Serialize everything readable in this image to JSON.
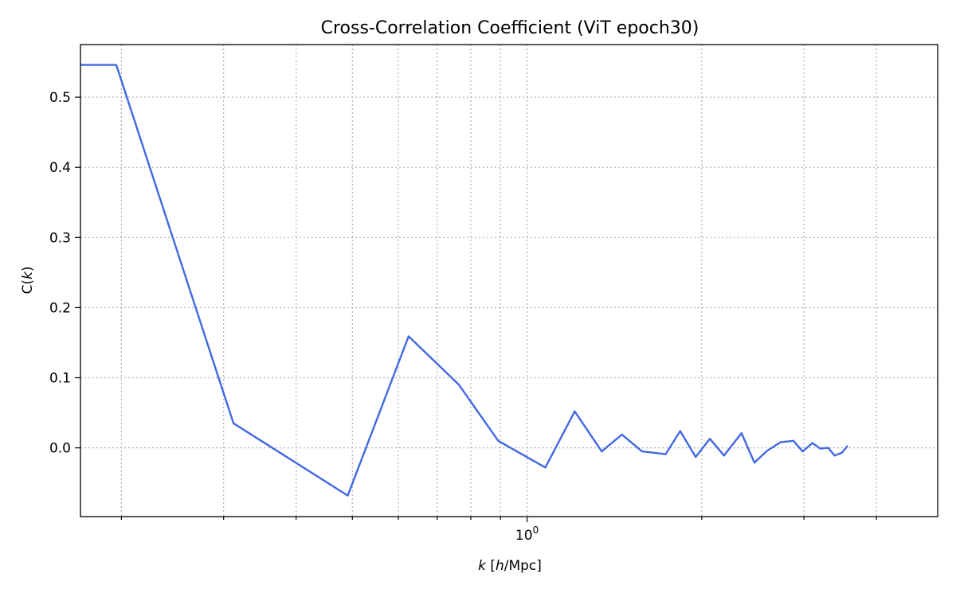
{
  "chart_data": {
    "type": "line",
    "title": "Cross-Correlation Coefficient (ViT epoch30)",
    "xlabel_italic": "k",
    "xlabel_rest": " [",
    "xlabel_h": "h",
    "xlabel_unit": "/Mpc]",
    "ylabel_C": "C(",
    "ylabel_k": "k",
    "ylabel_close": ")",
    "x_scale": "log",
    "xlim": [
      0.17,
      5.1
    ],
    "ylim": [
      -0.098,
      0.575
    ],
    "grid": true,
    "x_major_ticks": [
      {
        "value": 1.0,
        "label": "10",
        "exp": "0"
      }
    ],
    "x_minor_ticks": [
      0.2,
      0.3,
      0.4,
      0.5,
      0.6,
      0.7,
      0.8,
      0.9,
      2.0,
      3.0,
      4.0
    ],
    "y_ticks": [
      {
        "value": 0.0,
        "label": "0.0"
      },
      {
        "value": 0.1,
        "label": "0.1"
      },
      {
        "value": 0.2,
        "label": "0.2"
      },
      {
        "value": 0.3,
        "label": "0.3"
      },
      {
        "value": 0.4,
        "label": "0.4"
      },
      {
        "value": 0.5,
        "label": "0.5"
      }
    ],
    "series": [
      {
        "color": "#4169e1",
        "x": [
          0.17,
          0.196,
          0.312,
          0.491,
          0.625,
          0.763,
          0.892,
          1.075,
          1.208,
          1.345,
          1.457,
          1.578,
          1.733,
          1.836,
          1.952,
          2.066,
          2.185,
          2.342,
          2.464,
          2.593,
          2.733,
          2.878,
          2.985,
          3.103,
          3.199,
          3.303,
          3.388,
          3.486,
          3.569
        ],
        "y": [
          0.546,
          0.546,
          0.035,
          -0.068,
          0.159,
          0.09,
          0.01,
          -0.028,
          0.052,
          -0.005,
          0.019,
          -0.005,
          -0.009,
          0.024,
          -0.013,
          0.013,
          -0.011,
          0.021,
          -0.021,
          -0.004,
          0.008,
          0.01,
          -0.005,
          0.007,
          -0.001,
          0.0,
          -0.011,
          -0.007,
          0.003
        ]
      }
    ]
  }
}
